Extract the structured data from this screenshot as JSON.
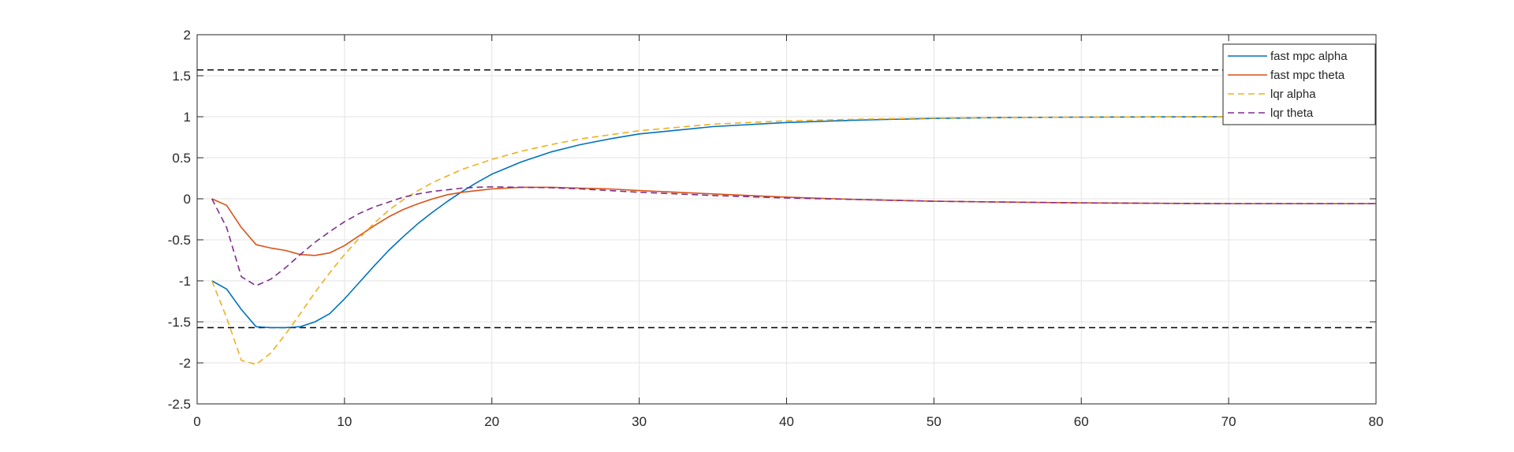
{
  "chart_data": {
    "type": "line",
    "title": "",
    "xlabel": "",
    "ylabel": "",
    "xlim": [
      0,
      80
    ],
    "ylim": [
      -2.5,
      2
    ],
    "grid": true,
    "legend_position": "top-right",
    "x_ticks": [
      0,
      10,
      20,
      30,
      40,
      50,
      60,
      70,
      80
    ],
    "x_tick_labels": [
      "0",
      "10",
      "20",
      "30",
      "40",
      "50",
      "60",
      "70",
      "80"
    ],
    "y_ticks": [
      -2.5,
      -2,
      -1.5,
      -1,
      -0.5,
      0,
      0.5,
      1,
      1.5,
      2
    ],
    "y_tick_labels": [
      "-2.5",
      "-2",
      "-1.5",
      "-1",
      "-0.5",
      "0",
      "0.5",
      "1",
      "1.5",
      "2"
    ],
    "reference_lines": [
      {
        "y": 1.5708,
        "color": "#000000",
        "style": "dashed"
      },
      {
        "y": -1.5708,
        "color": "#000000",
        "style": "dashed"
      }
    ],
    "series": [
      {
        "name": "fast mpc alpha",
        "color": "#0072BD",
        "style": "solid",
        "x": [
          1,
          2,
          3,
          4,
          5,
          6,
          7,
          8,
          9,
          10,
          11,
          12,
          13,
          14,
          15,
          16,
          17,
          18,
          19,
          20,
          22,
          24,
          26,
          28,
          30,
          35,
          40,
          45,
          50,
          55,
          60,
          65,
          70,
          75,
          80
        ],
        "y": [
          -1.0,
          -1.1,
          -1.35,
          -1.56,
          -1.57,
          -1.57,
          -1.56,
          -1.5,
          -1.4,
          -1.22,
          -1.02,
          -0.82,
          -0.63,
          -0.46,
          -0.3,
          -0.16,
          -0.03,
          0.09,
          0.2,
          0.3,
          0.45,
          0.57,
          0.66,
          0.73,
          0.79,
          0.88,
          0.93,
          0.96,
          0.98,
          0.99,
          0.995,
          0.998,
          1.0,
          1.0,
          1.0
        ]
      },
      {
        "name": "fast mpc theta",
        "color": "#D95319",
        "style": "solid",
        "x": [
          1,
          2,
          3,
          4,
          5,
          6,
          7,
          8,
          9,
          10,
          11,
          12,
          13,
          14,
          15,
          16,
          17,
          18,
          19,
          20,
          22,
          24,
          26,
          28,
          30,
          35,
          40,
          45,
          50,
          55,
          60,
          65,
          70,
          75,
          80
        ],
        "y": [
          0.0,
          -0.08,
          -0.35,
          -0.56,
          -0.6,
          -0.63,
          -0.68,
          -0.69,
          -0.66,
          -0.57,
          -0.45,
          -0.33,
          -0.22,
          -0.13,
          -0.06,
          0.0,
          0.05,
          0.08,
          0.1,
          0.12,
          0.14,
          0.14,
          0.13,
          0.12,
          0.1,
          0.06,
          0.02,
          -0.01,
          -0.03,
          -0.04,
          -0.05,
          -0.055,
          -0.06,
          -0.06,
          -0.06
        ]
      },
      {
        "name": "lqr alpha",
        "color": "#EDB120",
        "style": "dashed",
        "x": [
          1,
          2,
          3,
          4,
          5,
          6,
          7,
          8,
          9,
          10,
          11,
          12,
          13,
          14,
          15,
          16,
          17,
          18,
          19,
          20,
          22,
          24,
          26,
          28,
          30,
          35,
          40,
          45,
          50,
          55,
          60,
          65,
          70,
          75,
          80
        ],
        "y": [
          -1.0,
          -1.45,
          -1.97,
          -2.02,
          -1.88,
          -1.65,
          -1.4,
          -1.14,
          -0.9,
          -0.68,
          -0.48,
          -0.3,
          -0.14,
          -0.01,
          0.1,
          0.2,
          0.28,
          0.36,
          0.42,
          0.48,
          0.58,
          0.66,
          0.73,
          0.78,
          0.83,
          0.91,
          0.95,
          0.97,
          0.985,
          0.99,
          0.995,
          0.998,
          1.0,
          1.0,
          1.0
        ]
      },
      {
        "name": "lqr theta",
        "color": "#7E2F8E",
        "style": "dashed",
        "x": [
          1,
          2,
          3,
          4,
          5,
          6,
          7,
          8,
          9,
          10,
          11,
          12,
          13,
          14,
          15,
          16,
          17,
          18,
          19,
          20,
          22,
          24,
          26,
          28,
          30,
          35,
          40,
          45,
          50,
          55,
          60,
          65,
          70,
          75,
          80
        ],
        "y": [
          0.0,
          -0.35,
          -0.95,
          -1.06,
          -0.98,
          -0.84,
          -0.68,
          -0.53,
          -0.4,
          -0.28,
          -0.18,
          -0.1,
          -0.04,
          0.02,
          0.06,
          0.09,
          0.11,
          0.13,
          0.14,
          0.145,
          0.14,
          0.135,
          0.12,
          0.1,
          0.08,
          0.04,
          0.01,
          -0.01,
          -0.03,
          -0.04,
          -0.05,
          -0.055,
          -0.06,
          -0.06,
          -0.06
        ]
      }
    ]
  }
}
